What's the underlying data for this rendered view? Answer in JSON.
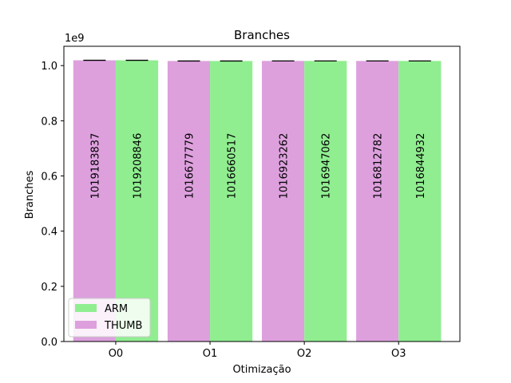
{
  "chart_data": {
    "type": "bar",
    "title": "Branches",
    "xlabel": "Otimização",
    "ylabel": "Branches",
    "offset_label": "1e9",
    "scale": 1000000000,
    "categories": [
      "O0",
      "O1",
      "O2",
      "O3"
    ],
    "ylim": [
      0,
      1.07
    ],
    "yticks": [
      "0.0",
      "0.2",
      "0.4",
      "0.6",
      "0.8",
      "1.0"
    ],
    "series": [
      {
        "name": "THUMB",
        "color": "#dda0dd",
        "values": [
          1019183837,
          1016677779,
          1016923262,
          1016812782
        ],
        "labels": [
          "1019183837",
          "1016677779",
          "1016923262",
          "1016812782"
        ]
      },
      {
        "name": "ARM",
        "color": "#90ee90",
        "values": [
          1019208846,
          1016660517,
          1016947062,
          1016844932
        ],
        "labels": [
          "1019208846",
          "1016660517",
          "1016947062",
          "1016844932"
        ]
      }
    ],
    "legend": {
      "placement": "lower-left",
      "order": [
        "ARM",
        "THUMB"
      ]
    },
    "error_bars": true,
    "grid": false
  }
}
